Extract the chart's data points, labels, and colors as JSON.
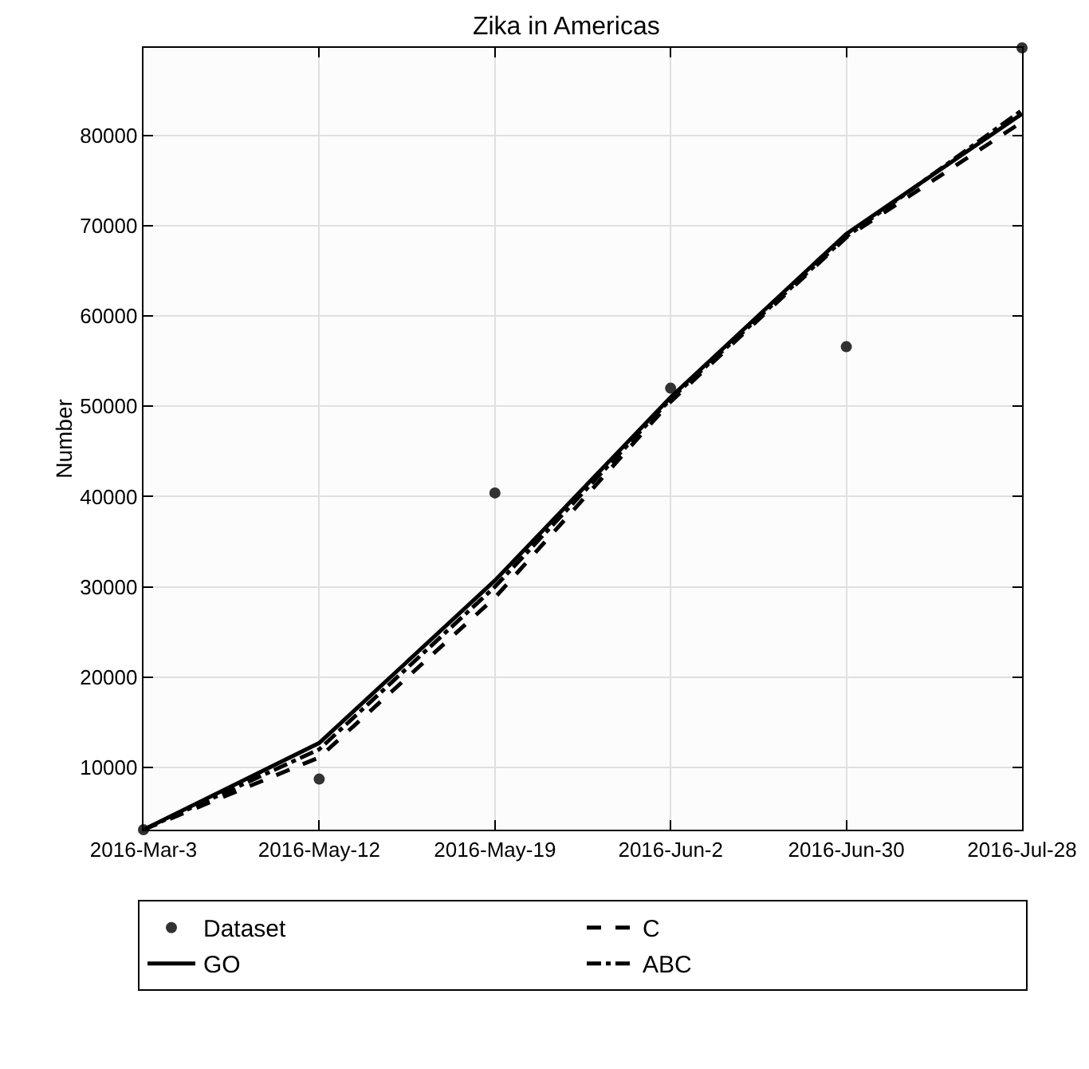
{
  "chart_data": {
    "type": "line",
    "title": "Zika in Americas",
    "ylabel": "Number",
    "categories": [
      "2016-Mar-3",
      "2016-May-12",
      "2016-May-19",
      "2016-Jun-2",
      "2016-Jun-30",
      "2016-Jul-28"
    ],
    "ylim": [
      3100,
      89700
    ],
    "yticks": [
      10000,
      20000,
      30000,
      40000,
      50000,
      60000,
      70000,
      80000
    ],
    "grid": true,
    "legend": "bottom",
    "series": [
      {
        "name": "Dataset",
        "type": "scatter",
        "marker": "circle",
        "color": "#333333",
        "values": [
          3100,
          8700,
          40400,
          52000,
          56600,
          89700
        ]
      },
      {
        "name": "C",
        "line_style": "dashed",
        "color": "#000000",
        "values": [
          3100,
          11100,
          28800,
          50500,
          68700,
          81500
        ]
      },
      {
        "name": "GO",
        "line_style": "solid",
        "color": "#000000",
        "values": [
          3100,
          12700,
          30700,
          51000,
          69100,
          82400
        ]
      },
      {
        "name": "ABC",
        "line_style": "dashdot",
        "color": "#000000",
        "values": [
          3100,
          12000,
          30000,
          50800,
          68800,
          82800
        ]
      }
    ]
  }
}
